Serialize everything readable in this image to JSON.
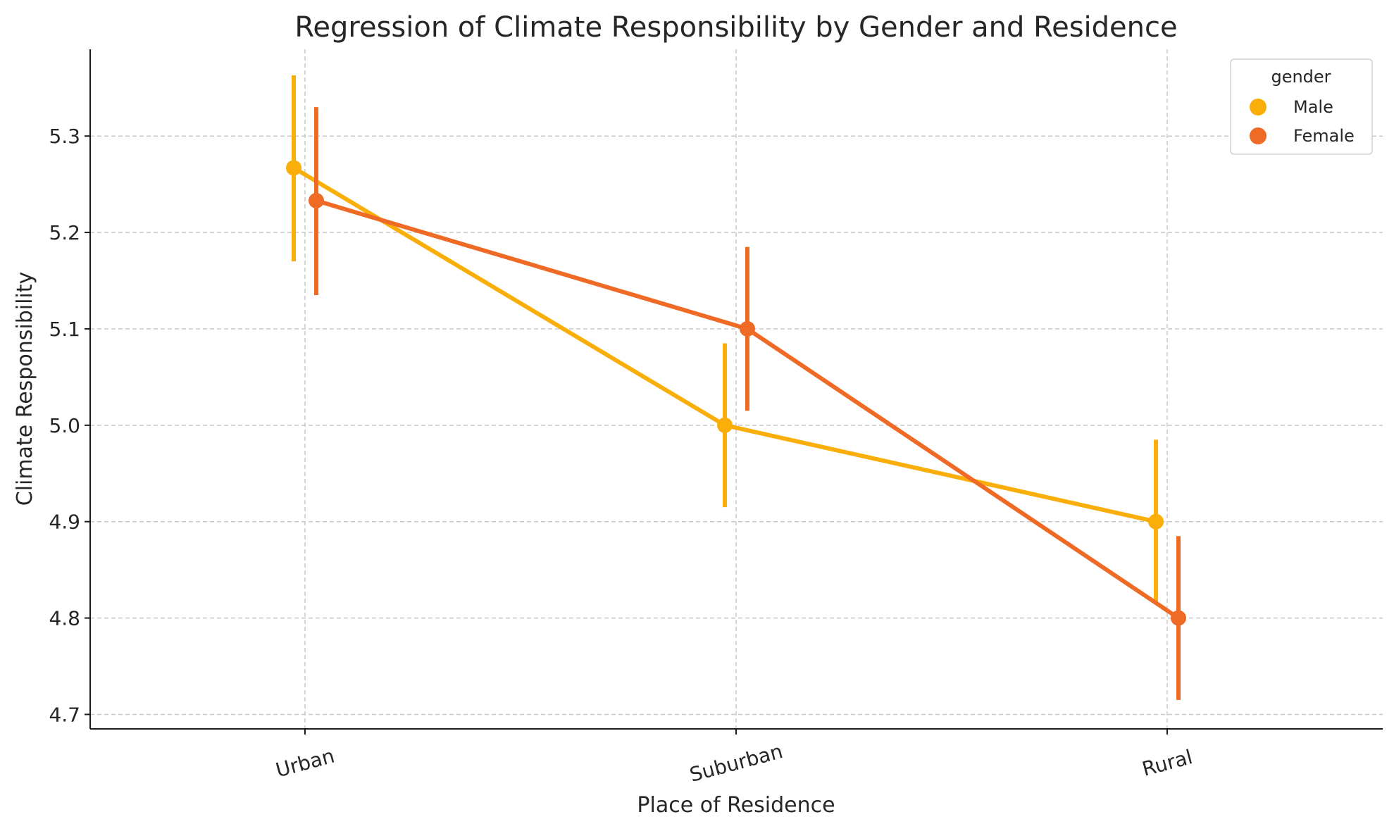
{
  "chart_data": {
    "type": "line",
    "title": "Regression of Climate Responsibility by Gender and Residence",
    "xlabel": "Place of Residence",
    "ylabel": "Climate Responsibility",
    "categories": [
      "Urban",
      "Suburban",
      "Rural"
    ],
    "ylim": [
      4.685,
      5.39
    ],
    "yticks": [
      "4.7",
      "4.8",
      "4.9",
      "5.0",
      "5.1",
      "5.2",
      "5.3"
    ],
    "grid": true,
    "legend": {
      "title": "gender",
      "position": "top-right"
    },
    "series": [
      {
        "name": "Male",
        "color": "#F9AE0A",
        "values": [
          5.267,
          5.0,
          4.9
        ],
        "ci_low": [
          5.17,
          4.915,
          4.815
        ],
        "ci_high": [
          5.363,
          5.085,
          4.985
        ]
      },
      {
        "name": "Female",
        "color": "#EF6A25",
        "values": [
          5.233,
          5.1,
          4.8
        ],
        "ci_low": [
          5.135,
          5.015,
          4.715
        ],
        "ci_high": [
          5.33,
          5.185,
          4.885
        ]
      }
    ]
  }
}
